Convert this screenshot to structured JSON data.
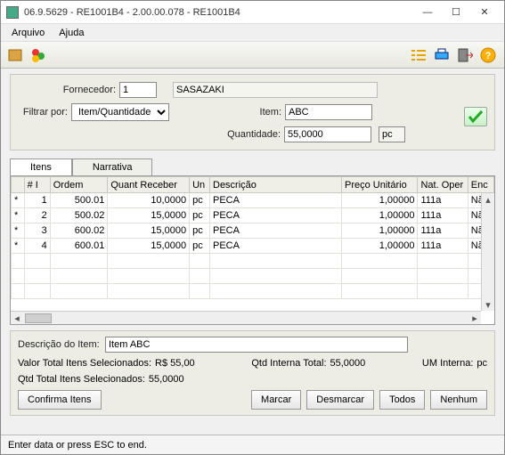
{
  "window": {
    "title": "06.9.5629 - RE1001B4 - 2.00.00.078 - RE1001B4"
  },
  "menu": {
    "arquivo": "Arquivo",
    "ajuda": "Ajuda"
  },
  "filter": {
    "fornecedor_label": "Fornecedor:",
    "fornecedor_cod": "1",
    "fornecedor_nome": "SASAZAKI",
    "filtrar_por_label": "Filtrar por:",
    "filtrar_por_value": "Item/Quantidade",
    "item_label": "Item:",
    "item_value": "ABC",
    "quantidade_label": "Quantidade:",
    "quantidade_value": "55,0000",
    "um": "pc"
  },
  "tabs": {
    "itens": "Itens",
    "narrativa": "Narrativa"
  },
  "grid": {
    "headers": {
      "mark": "",
      "num": "# I",
      "ordem": "Ordem",
      "quant": "Quant Receber",
      "un": "Un",
      "descricao": "Descrição",
      "preco": "Preço Unitário",
      "natoper": "Nat. Oper",
      "enc": "Enc"
    },
    "rows": [
      {
        "mark": "*",
        "num": "1",
        "ordem": "500.01",
        "quant": "10,0000",
        "un": "pc",
        "desc": "PECA",
        "preco": "1,00000",
        "nat": "111a",
        "enc": "Nã"
      },
      {
        "mark": "*",
        "num": "2",
        "ordem": "500.02",
        "quant": "15,0000",
        "un": "pc",
        "desc": "PECA",
        "preco": "1,00000",
        "nat": "111a",
        "enc": "Nã"
      },
      {
        "mark": "*",
        "num": "3",
        "ordem": "600.02",
        "quant": "15,0000",
        "un": "pc",
        "desc": "PECA",
        "preco": "1,00000",
        "nat": "111a",
        "enc": "Nã"
      },
      {
        "mark": "*",
        "num": "4",
        "ordem": "600.01",
        "quant": "15,0000",
        "un": "pc",
        "desc": "PECA",
        "preco": "1,00000",
        "nat": "111a",
        "enc": "Nã"
      }
    ]
  },
  "summary": {
    "descricao_item_label": "Descrição do Item:",
    "descricao_item_value": "Item ABC",
    "valor_total_label": "Valor Total Itens Selecionados:",
    "valor_total_value": "R$ 55,00",
    "qtd_interna_label": "Qtd Interna Total:",
    "qtd_interna_value": "55,0000",
    "um_interna_label": "UM Interna:",
    "um_interna_value": "pc",
    "qtd_total_sel_label": "Qtd Total Itens Selecionados:",
    "qtd_total_sel_value": "55,0000"
  },
  "buttons": {
    "confirma": "Confirma Itens",
    "marcar": "Marcar",
    "desmarcar": "Desmarcar",
    "todos": "Todos",
    "nenhum": "Nenhum"
  },
  "status": "Enter data or press ESC to end.",
  "colors": {
    "group_bg": "#edede6",
    "accent_green": "#3a3"
  }
}
